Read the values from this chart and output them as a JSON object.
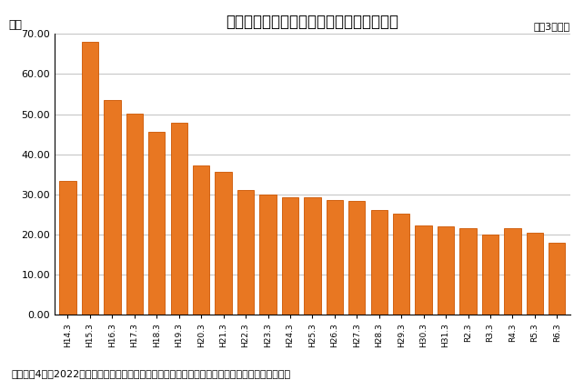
{
  "title": "（株）ファンケル発芽米事業売上高の推移",
  "ylabel": "億円",
  "note_right": "各年3月期末",
  "footnote": "注）令和4年（2022）３月期から会計基準を変更しているため、前期までとの単純比較ができない",
  "categories": [
    "H14.3",
    "H15.3",
    "H16.3",
    "H17.3",
    "H18.3",
    "H19.3",
    "H20.3",
    "H21.3",
    "H22.3",
    "H23.3",
    "H24.3",
    "H25.3",
    "H26.3",
    "H27.3",
    "H28.3",
    "H29.3",
    "H30.3",
    "H31.3",
    "R2.3",
    "R3.3",
    "R4.3",
    "R5.3",
    "R6.3"
  ],
  "values": [
    33.4,
    68.1,
    53.5,
    50.2,
    45.6,
    47.8,
    37.1,
    35.6,
    31.0,
    29.9,
    29.2,
    29.2,
    28.6,
    28.4,
    26.1,
    25.1,
    22.2,
    22.1,
    21.5,
    20.1,
    21.5,
    20.5,
    17.9
  ],
  "bar_color": "#E87722",
  "bar_edge_color": "#CC5500",
  "ylim": [
    0,
    70.0
  ],
  "yticks": [
    0.0,
    10.0,
    20.0,
    30.0,
    40.0,
    50.0,
    60.0,
    70.0
  ],
  "background_color": "#FFFFFF",
  "grid_color": "#AAAAAA",
  "title_fontsize": 12,
  "axis_fontsize": 8,
  "ylabel_fontsize": 9,
  "note_fontsize": 8,
  "footnote_fontsize": 8
}
